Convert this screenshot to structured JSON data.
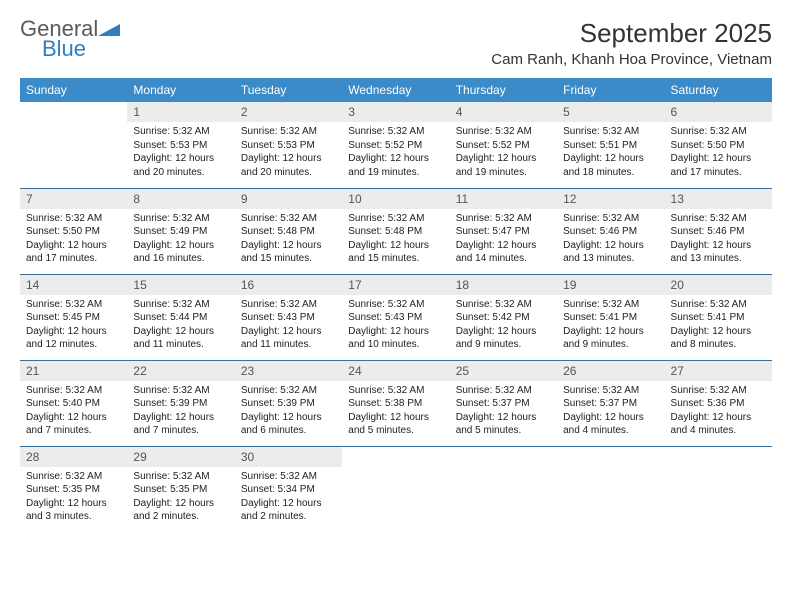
{
  "brand": {
    "part1": "General",
    "part2": "Blue",
    "color1": "#5a5a5a",
    "color2": "#2f7fc0"
  },
  "title": "September 2025",
  "location": "Cam Ranh, Khanh Hoa Province, Vietnam",
  "header_bg": "#3b8bc8",
  "daynum_bg": "#ececec",
  "rule_color": "#3b6f9c",
  "days_of_week": [
    "Sunday",
    "Monday",
    "Tuesday",
    "Wednesday",
    "Thursday",
    "Friday",
    "Saturday"
  ],
  "weeks": [
    [
      null,
      {
        "n": "1",
        "sr": "Sunrise: 5:32 AM",
        "ss": "Sunset: 5:53 PM",
        "d1": "Daylight: 12 hours",
        "d2": "and 20 minutes."
      },
      {
        "n": "2",
        "sr": "Sunrise: 5:32 AM",
        "ss": "Sunset: 5:53 PM",
        "d1": "Daylight: 12 hours",
        "d2": "and 20 minutes."
      },
      {
        "n": "3",
        "sr": "Sunrise: 5:32 AM",
        "ss": "Sunset: 5:52 PM",
        "d1": "Daylight: 12 hours",
        "d2": "and 19 minutes."
      },
      {
        "n": "4",
        "sr": "Sunrise: 5:32 AM",
        "ss": "Sunset: 5:52 PM",
        "d1": "Daylight: 12 hours",
        "d2": "and 19 minutes."
      },
      {
        "n": "5",
        "sr": "Sunrise: 5:32 AM",
        "ss": "Sunset: 5:51 PM",
        "d1": "Daylight: 12 hours",
        "d2": "and 18 minutes."
      },
      {
        "n": "6",
        "sr": "Sunrise: 5:32 AM",
        "ss": "Sunset: 5:50 PM",
        "d1": "Daylight: 12 hours",
        "d2": "and 17 minutes."
      }
    ],
    [
      {
        "n": "7",
        "sr": "Sunrise: 5:32 AM",
        "ss": "Sunset: 5:50 PM",
        "d1": "Daylight: 12 hours",
        "d2": "and 17 minutes."
      },
      {
        "n": "8",
        "sr": "Sunrise: 5:32 AM",
        "ss": "Sunset: 5:49 PM",
        "d1": "Daylight: 12 hours",
        "d2": "and 16 minutes."
      },
      {
        "n": "9",
        "sr": "Sunrise: 5:32 AM",
        "ss": "Sunset: 5:48 PM",
        "d1": "Daylight: 12 hours",
        "d2": "and 15 minutes."
      },
      {
        "n": "10",
        "sr": "Sunrise: 5:32 AM",
        "ss": "Sunset: 5:48 PM",
        "d1": "Daylight: 12 hours",
        "d2": "and 15 minutes."
      },
      {
        "n": "11",
        "sr": "Sunrise: 5:32 AM",
        "ss": "Sunset: 5:47 PM",
        "d1": "Daylight: 12 hours",
        "d2": "and 14 minutes."
      },
      {
        "n": "12",
        "sr": "Sunrise: 5:32 AM",
        "ss": "Sunset: 5:46 PM",
        "d1": "Daylight: 12 hours",
        "d2": "and 13 minutes."
      },
      {
        "n": "13",
        "sr": "Sunrise: 5:32 AM",
        "ss": "Sunset: 5:46 PM",
        "d1": "Daylight: 12 hours",
        "d2": "and 13 minutes."
      }
    ],
    [
      {
        "n": "14",
        "sr": "Sunrise: 5:32 AM",
        "ss": "Sunset: 5:45 PM",
        "d1": "Daylight: 12 hours",
        "d2": "and 12 minutes."
      },
      {
        "n": "15",
        "sr": "Sunrise: 5:32 AM",
        "ss": "Sunset: 5:44 PM",
        "d1": "Daylight: 12 hours",
        "d2": "and 11 minutes."
      },
      {
        "n": "16",
        "sr": "Sunrise: 5:32 AM",
        "ss": "Sunset: 5:43 PM",
        "d1": "Daylight: 12 hours",
        "d2": "and 11 minutes."
      },
      {
        "n": "17",
        "sr": "Sunrise: 5:32 AM",
        "ss": "Sunset: 5:43 PM",
        "d1": "Daylight: 12 hours",
        "d2": "and 10 minutes."
      },
      {
        "n": "18",
        "sr": "Sunrise: 5:32 AM",
        "ss": "Sunset: 5:42 PM",
        "d1": "Daylight: 12 hours",
        "d2": "and 9 minutes."
      },
      {
        "n": "19",
        "sr": "Sunrise: 5:32 AM",
        "ss": "Sunset: 5:41 PM",
        "d1": "Daylight: 12 hours",
        "d2": "and 9 minutes."
      },
      {
        "n": "20",
        "sr": "Sunrise: 5:32 AM",
        "ss": "Sunset: 5:41 PM",
        "d1": "Daylight: 12 hours",
        "d2": "and 8 minutes."
      }
    ],
    [
      {
        "n": "21",
        "sr": "Sunrise: 5:32 AM",
        "ss": "Sunset: 5:40 PM",
        "d1": "Daylight: 12 hours",
        "d2": "and 7 minutes."
      },
      {
        "n": "22",
        "sr": "Sunrise: 5:32 AM",
        "ss": "Sunset: 5:39 PM",
        "d1": "Daylight: 12 hours",
        "d2": "and 7 minutes."
      },
      {
        "n": "23",
        "sr": "Sunrise: 5:32 AM",
        "ss": "Sunset: 5:39 PM",
        "d1": "Daylight: 12 hours",
        "d2": "and 6 minutes."
      },
      {
        "n": "24",
        "sr": "Sunrise: 5:32 AM",
        "ss": "Sunset: 5:38 PM",
        "d1": "Daylight: 12 hours",
        "d2": "and 5 minutes."
      },
      {
        "n": "25",
        "sr": "Sunrise: 5:32 AM",
        "ss": "Sunset: 5:37 PM",
        "d1": "Daylight: 12 hours",
        "d2": "and 5 minutes."
      },
      {
        "n": "26",
        "sr": "Sunrise: 5:32 AM",
        "ss": "Sunset: 5:37 PM",
        "d1": "Daylight: 12 hours",
        "d2": "and 4 minutes."
      },
      {
        "n": "27",
        "sr": "Sunrise: 5:32 AM",
        "ss": "Sunset: 5:36 PM",
        "d1": "Daylight: 12 hours",
        "d2": "and 4 minutes."
      }
    ],
    [
      {
        "n": "28",
        "sr": "Sunrise: 5:32 AM",
        "ss": "Sunset: 5:35 PM",
        "d1": "Daylight: 12 hours",
        "d2": "and 3 minutes."
      },
      {
        "n": "29",
        "sr": "Sunrise: 5:32 AM",
        "ss": "Sunset: 5:35 PM",
        "d1": "Daylight: 12 hours",
        "d2": "and 2 minutes."
      },
      {
        "n": "30",
        "sr": "Sunrise: 5:32 AM",
        "ss": "Sunset: 5:34 PM",
        "d1": "Daylight: 12 hours",
        "d2": "and 2 minutes."
      },
      null,
      null,
      null,
      null
    ]
  ]
}
